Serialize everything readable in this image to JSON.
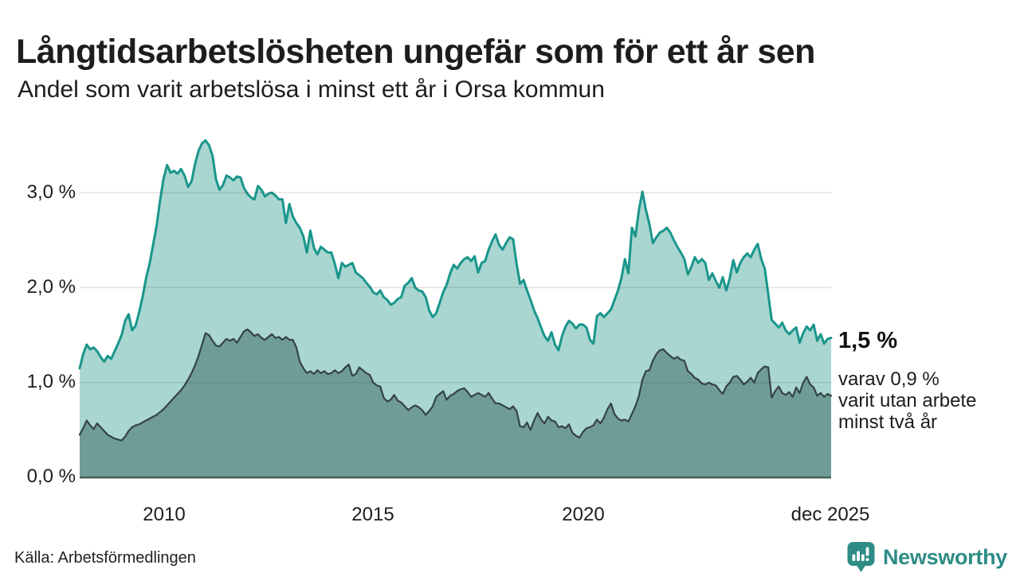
{
  "header": {
    "title": "Långtidsarbetslösheten ungefär som för ett år sen",
    "subtitle": "Andel som varit arbetslösa i minst ett år i Orsa kommun"
  },
  "chart_data": {
    "type": "area",
    "title": "Långtidsarbetslösheten ungefär som för ett år sen",
    "subtitle": "Andel som varit arbetslösa i minst ett år i Orsa kommun",
    "unit": "%",
    "frequency": "monthly",
    "x_start": "2008-01",
    "x_end": "2025-12",
    "ylim": [
      0,
      3.6
    ],
    "grid": true,
    "gridline_values": [
      1,
      2,
      3
    ],
    "grid_color": "rgba(40,40,40,0.13)",
    "baseline_color": "#44605b",
    "y_tick_labels": [
      "3,0 %",
      "2,0 %",
      "1,0 %",
      "0,0 %"
    ],
    "x_tick_labels": [
      "2010",
      "2015",
      "2020",
      "dec 2025"
    ],
    "series": [
      {
        "name": "Andel arbetslösa minst ett år",
        "color": "#1a968c",
        "fill": "#a9d6d0",
        "latest_label": "1,5 %",
        "values": [
          1.15,
          1.3,
          1.4,
          1.35,
          1.37,
          1.33,
          1.27,
          1.22,
          1.28,
          1.25,
          1.33,
          1.41,
          1.5,
          1.65,
          1.72,
          1.55,
          1.6,
          1.74,
          1.9,
          2.1,
          2.25,
          2.45,
          2.65,
          2.92,
          3.15,
          3.29,
          3.21,
          3.23,
          3.2,
          3.25,
          3.18,
          3.06,
          3.12,
          3.3,
          3.44,
          3.52,
          3.55,
          3.5,
          3.39,
          3.14,
          3.03,
          3.08,
          3.18,
          3.16,
          3.13,
          3.17,
          3.16,
          3.05,
          2.99,
          2.95,
          2.93,
          3.07,
          3.03,
          2.96,
          2.99,
          3.0,
          2.97,
          2.93,
          2.93,
          2.68,
          2.88,
          2.75,
          2.68,
          2.63,
          2.54,
          2.37,
          2.6,
          2.42,
          2.35,
          2.43,
          2.4,
          2.37,
          2.37,
          2.25,
          2.1,
          2.26,
          2.22,
          2.24,
          2.26,
          2.16,
          2.13,
          2.1,
          2.05,
          2.01,
          1.95,
          1.93,
          1.97,
          1.9,
          1.87,
          1.82,
          1.84,
          1.88,
          1.9,
          2.02,
          2.05,
          2.1,
          2.0,
          1.97,
          1.96,
          1.9,
          1.76,
          1.69,
          1.73,
          1.84,
          1.95,
          2.03,
          2.15,
          2.24,
          2.2,
          2.26,
          2.3,
          2.32,
          2.28,
          2.33,
          2.16,
          2.26,
          2.28,
          2.4,
          2.49,
          2.56,
          2.45,
          2.4,
          2.47,
          2.53,
          2.51,
          2.25,
          2.04,
          2.08,
          1.97,
          1.87,
          1.76,
          1.68,
          1.58,
          1.49,
          1.44,
          1.53,
          1.4,
          1.34,
          1.49,
          1.59,
          1.65,
          1.62,
          1.57,
          1.61,
          1.61,
          1.58,
          1.45,
          1.41,
          1.7,
          1.73,
          1.69,
          1.73,
          1.77,
          1.87,
          1.97,
          2.1,
          2.3,
          2.15,
          2.63,
          2.54,
          2.82,
          3.01,
          2.82,
          2.67,
          2.47,
          2.53,
          2.58,
          2.6,
          2.63,
          2.58,
          2.5,
          2.43,
          2.37,
          2.3,
          2.14,
          2.22,
          2.32,
          2.26,
          2.3,
          2.26,
          2.08,
          2.15,
          2.07,
          2.0,
          2.11,
          1.97,
          2.1,
          2.29,
          2.16,
          2.26,
          2.32,
          2.36,
          2.32,
          2.4,
          2.46,
          2.3,
          2.2,
          1.93,
          1.66,
          1.62,
          1.58,
          1.63,
          1.55,
          1.51,
          1.55,
          1.58,
          1.42,
          1.52,
          1.59,
          1.55,
          1.61,
          1.44,
          1.51,
          1.41,
          1.46,
          1.47
        ]
      },
      {
        "name": "varav arbetslösa minst två år",
        "color": "#344442",
        "fill": "#6f9c97",
        "latest_label": "0,9 %",
        "values": [
          0.45,
          0.52,
          0.6,
          0.55,
          0.51,
          0.57,
          0.53,
          0.49,
          0.45,
          0.43,
          0.41,
          0.4,
          0.39,
          0.43,
          0.49,
          0.53,
          0.55,
          0.56,
          0.58,
          0.6,
          0.62,
          0.64,
          0.66,
          0.69,
          0.72,
          0.76,
          0.8,
          0.84,
          0.88,
          0.92,
          0.97,
          1.03,
          1.1,
          1.18,
          1.28,
          1.4,
          1.52,
          1.5,
          1.44,
          1.39,
          1.38,
          1.42,
          1.46,
          1.44,
          1.46,
          1.42,
          1.48,
          1.54,
          1.56,
          1.53,
          1.49,
          1.51,
          1.47,
          1.45,
          1.48,
          1.51,
          1.47,
          1.48,
          1.45,
          1.48,
          1.45,
          1.45,
          1.37,
          1.22,
          1.15,
          1.1,
          1.12,
          1.09,
          1.13,
          1.1,
          1.12,
          1.09,
          1.1,
          1.13,
          1.1,
          1.12,
          1.16,
          1.19,
          1.07,
          1.09,
          1.16,
          1.13,
          1.1,
          1.08,
          1.0,
          0.97,
          0.96,
          0.84,
          0.8,
          0.82,
          0.87,
          0.81,
          0.79,
          0.75,
          0.71,
          0.74,
          0.76,
          0.74,
          0.71,
          0.66,
          0.7,
          0.75,
          0.85,
          0.88,
          0.91,
          0.82,
          0.86,
          0.88,
          0.91,
          0.93,
          0.94,
          0.9,
          0.85,
          0.87,
          0.89,
          0.87,
          0.85,
          0.89,
          0.83,
          0.78,
          0.78,
          0.76,
          0.74,
          0.72,
          0.75,
          0.7,
          0.54,
          0.53,
          0.58,
          0.5,
          0.6,
          0.68,
          0.61,
          0.57,
          0.64,
          0.6,
          0.59,
          0.53,
          0.54,
          0.52,
          0.56,
          0.47,
          0.44,
          0.42,
          0.48,
          0.52,
          0.53,
          0.55,
          0.61,
          0.57,
          0.63,
          0.72,
          0.78,
          0.67,
          0.62,
          0.6,
          0.61,
          0.59,
          0.67,
          0.75,
          0.86,
          1.03,
          1.12,
          1.13,
          1.23,
          1.3,
          1.34,
          1.35,
          1.31,
          1.28,
          1.25,
          1.27,
          1.24,
          1.23,
          1.12,
          1.09,
          1.05,
          1.03,
          0.99,
          0.98,
          1.0,
          0.98,
          0.97,
          0.92,
          0.88,
          0.96,
          1.0,
          1.06,
          1.07,
          1.03,
          0.98,
          1.01,
          1.05,
          1.0,
          1.1,
          1.14,
          1.17,
          1.16,
          0.84,
          0.91,
          0.96,
          0.89,
          0.87,
          0.9,
          0.85,
          0.95,
          0.89,
          1.0,
          1.06,
          0.98,
          0.95,
          0.86,
          0.89,
          0.85,
          0.88,
          0.86
        ]
      }
    ]
  },
  "annotation": {
    "value_label": "1,5 %",
    "detail_lines": [
      "varav 0,9 %",
      "varit utan arbete",
      "minst två år"
    ]
  },
  "footer": {
    "source": "Källa: Arbetsförmedlingen",
    "logo_text": "Newsworthy",
    "logo_color": "#2e8c85"
  }
}
